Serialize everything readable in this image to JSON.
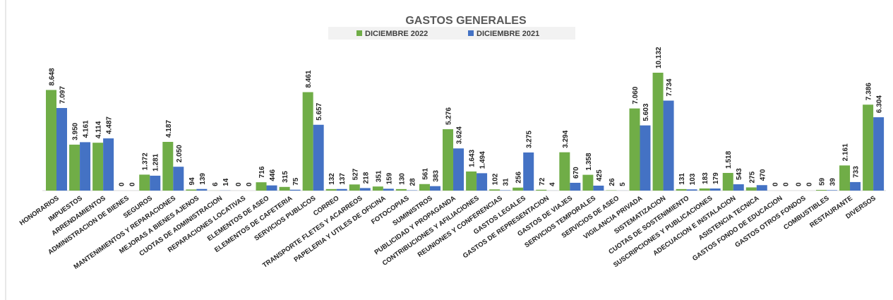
{
  "chart_data": {
    "type": "bar",
    "title": "GASTOS GENERALES",
    "categories": [
      "HONORARIOS",
      "IMPUESTOS",
      "ARRENDAMIENTOS",
      "ADMINISTRACION DE BIENES",
      "SEGUROS",
      "MANTENIMIENTOS Y REPARACIONES",
      "MEJORAS A BIENES AJENOS",
      "CUOTAS DE ADMINISTRACION",
      "REPARACIONES LOCATIVAS",
      "ELEMENTOS DE ASEO",
      "ELEMENTOS DE CAFETERIA",
      "SERVICIOS PUBLICOS",
      "CORREO",
      "TRANSPORTE FLETES Y ACARREOS",
      "PAPELERIA Y UTILES DE OFICINA",
      "FOTOCOPIAS",
      "SUMINISTROS",
      "PUBLICIDAD Y PROPAGANDA",
      "CONTRIBUCIONES Y AFILIACIONES",
      "REUNIONES Y CONFERENCIAS",
      "GASTOS LEGALES",
      "GASTOS DE REPRESENTACION",
      "GASTOS DE VIAJES",
      "SERVICIOS TEMPORALES",
      "SERVICIOS DE ASEO",
      "VIGILANCIA PRIVADA",
      "SISTEMATIZACION",
      "CUOTAS DE SOSTENIMIENTO",
      "SUSCRIPCIONES Y PUBLICACIONES",
      "ADECUACION E INSTALACION",
      "ASISTENCIA TECNICA",
      "GASTOS FONDO DE EDUCACION",
      "GASTOS OTROS FONDOS",
      "COMBUSTIBLES",
      "RESTAURANTE",
      "DIVERSOS"
    ],
    "series": [
      {
        "name": "DICIEMBRE 2022",
        "color": "#70ad47",
        "values": [
          8648,
          3950,
          4114,
          0,
          1372,
          4187,
          94,
          6,
          0,
          716,
          315,
          8461,
          132,
          527,
          351,
          130,
          561,
          5276,
          1643,
          102,
          256,
          72,
          3294,
          1358,
          26,
          7060,
          10132,
          131,
          183,
          1518,
          275,
          0,
          0,
          59,
          2161,
          7386
        ],
        "value_labels": [
          "8.648",
          "3.950",
          "4.114",
          "0",
          "1.372",
          "4.187",
          "94",
          "6",
          "0",
          "716",
          "315",
          "8.461",
          "132",
          "527",
          "351",
          "130",
          "561",
          "5.276",
          "1.643",
          "102",
          "256",
          "72",
          "3.294",
          "1.358",
          "26",
          "7.060",
          "10.132",
          "131",
          "183",
          "1.518",
          "275",
          "0",
          "0",
          "59",
          "2.161",
          "7.386"
        ]
      },
      {
        "name": "DICIEMBRE 2021",
        "color": "#4472c4",
        "values": [
          7097,
          4161,
          4487,
          0,
          1281,
          2050,
          139,
          14,
          0,
          446,
          75,
          5657,
          137,
          218,
          159,
          28,
          383,
          3624,
          1494,
          31,
          3275,
          4,
          670,
          425,
          5,
          5603,
          7734,
          103,
          179,
          543,
          470,
          0,
          0,
          39,
          733,
          6304
        ],
        "value_labels": [
          "7.097",
          "4.161",
          "4.487",
          "0",
          "1.281",
          "2.050",
          "139",
          "14",
          "0",
          "446",
          "75",
          "5.657",
          "137",
          "218",
          "159",
          "28",
          "383",
          "3.624",
          "1.494",
          "31",
          "3.275",
          "4",
          "670",
          "425",
          "5",
          "5.603",
          "7.734",
          "103",
          "179",
          "543",
          "470",
          "0",
          "0",
          "39",
          "733",
          "6.304"
        ]
      }
    ]
  }
}
